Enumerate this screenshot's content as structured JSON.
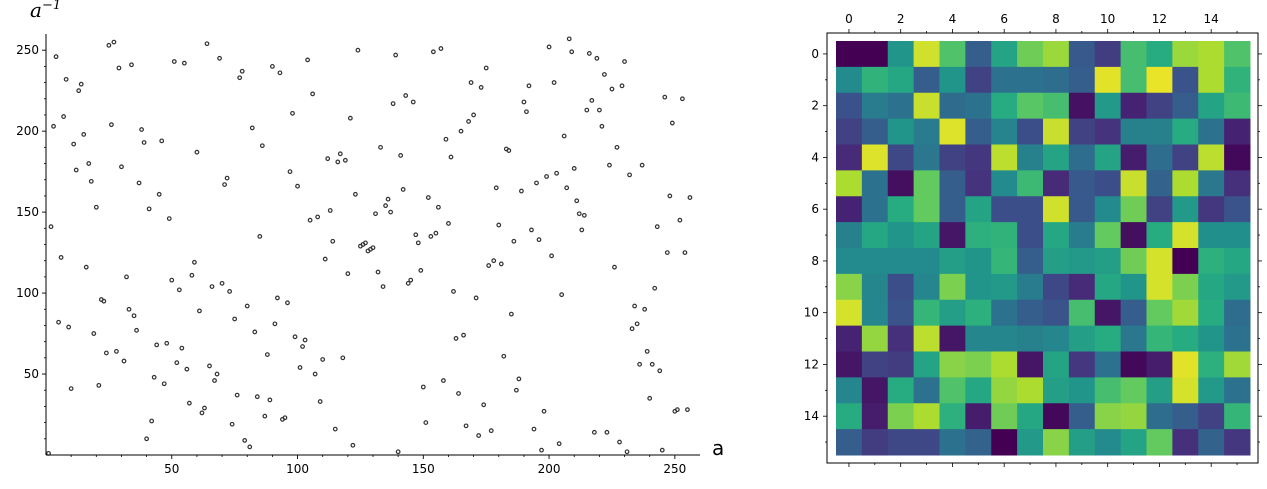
{
  "chart_data": [
    {
      "type": "scatter",
      "title": "",
      "xlabel": "a",
      "ylabel": "a",
      "ylabel_superscript": "−1",
      "xlim": [
        0,
        260
      ],
      "ylim": [
        0,
        260
      ],
      "x_ticks": [
        50,
        100,
        150,
        200,
        250
      ],
      "y_ticks": [
        50,
        100,
        150,
        200,
        250
      ],
      "grid": false,
      "marker_color": "#333333",
      "points": [
        [
          1,
          1
        ],
        [
          2,
          141
        ],
        [
          3,
          203
        ],
        [
          4,
          246
        ],
        [
          5,
          82
        ],
        [
          6,
          122
        ],
        [
          7,
          209
        ],
        [
          8,
          232
        ],
        [
          9,
          79
        ],
        [
          10,
          41
        ],
        [
          11,
          192
        ],
        [
          12,
          176
        ],
        [
          13,
          225
        ],
        [
          14,
          229
        ],
        [
          15,
          198
        ],
        [
          16,
          116
        ],
        [
          17,
          180
        ],
        [
          18,
          169
        ],
        [
          19,
          75
        ],
        [
          20,
          153
        ],
        [
          21,
          43
        ],
        [
          22,
          96
        ],
        [
          23,
          95
        ],
        [
          24,
          63
        ],
        [
          25,
          253
        ],
        [
          26,
          204
        ],
        [
          27,
          255
        ],
        [
          28,
          64
        ],
        [
          29,
          239
        ],
        [
          30,
          178
        ],
        [
          31,
          58
        ],
        [
          32,
          110
        ],
        [
          33,
          90
        ],
        [
          34,
          241
        ],
        [
          35,
          86
        ],
        [
          36,
          77
        ],
        [
          37,
          168
        ],
        [
          38,
          201
        ],
        [
          39,
          193
        ],
        [
          40,
          10
        ],
        [
          41,
          152
        ],
        [
          42,
          21
        ],
        [
          43,
          48
        ],
        [
          44,
          68
        ],
        [
          45,
          161
        ],
        [
          46,
          194
        ],
        [
          47,
          44
        ],
        [
          48,
          69
        ],
        [
          49,
          146
        ],
        [
          50,
          108
        ],
        [
          51,
          243
        ],
        [
          52,
          57
        ],
        [
          53,
          102
        ],
        [
          54,
          66
        ],
        [
          55,
          242
        ],
        [
          56,
          53
        ],
        [
          57,
          32
        ],
        [
          58,
          111
        ],
        [
          59,
          119
        ],
        [
          60,
          187
        ],
        [
          61,
          89
        ],
        [
          62,
          26
        ],
        [
          63,
          29
        ],
        [
          64,
          254
        ],
        [
          65,
          55
        ],
        [
          66,
          104
        ],
        [
          67,
          46
        ],
        [
          68,
          50
        ],
        [
          69,
          245
        ],
        [
          70,
          106
        ],
        [
          71,
          167
        ],
        [
          72,
          171
        ],
        [
          73,
          101
        ],
        [
          74,
          19
        ],
        [
          75,
          84
        ],
        [
          76,
          37
        ],
        [
          77,
          233
        ],
        [
          78,
          237
        ],
        [
          79,
          9
        ],
        [
          80,
          92
        ],
        [
          81,
          5
        ],
        [
          82,
          202
        ],
        [
          83,
          76
        ],
        [
          84,
          36
        ],
        [
          85,
          135
        ],
        [
          86,
          191
        ],
        [
          87,
          24
        ],
        [
          88,
          62
        ],
        [
          89,
          34
        ],
        [
          90,
          240
        ],
        [
          91,
          81
        ],
        [
          92,
          97
        ],
        [
          93,
          236
        ],
        [
          94,
          22
        ],
        [
          95,
          23
        ],
        [
          96,
          94
        ],
        [
          97,
          175
        ],
        [
          98,
          211
        ],
        [
          99,
          73
        ],
        [
          100,
          166
        ],
        [
          101,
          54
        ],
        [
          102,
          67
        ],
        [
          103,
          71
        ],
        [
          104,
          244
        ],
        [
          105,
          145
        ],
        [
          106,
          223
        ],
        [
          107,
          50
        ],
        [
          108,
          147
        ],
        [
          109,
          33
        ],
        [
          110,
          59
        ],
        [
          111,
          121
        ],
        [
          112,
          183
        ],
        [
          113,
          151
        ],
        [
          114,
          132
        ],
        [
          115,
          16
        ],
        [
          116,
          181
        ],
        [
          117,
          186
        ],
        [
          118,
          60
        ],
        [
          119,
          182
        ],
        [
          120,
          112
        ],
        [
          121,
          208
        ],
        [
          122,
          6
        ],
        [
          123,
          161
        ],
        [
          124,
          250
        ],
        [
          125,
          129
        ],
        [
          126,
          130
        ],
        [
          127,
          131
        ],
        [
          128,
          126
        ],
        [
          129,
          127
        ],
        [
          130,
          128
        ],
        [
          131,
          149
        ],
        [
          132,
          113
        ],
        [
          133,
          190
        ],
        [
          134,
          104
        ],
        [
          135,
          154
        ],
        [
          136,
          158
        ],
        [
          137,
          150
        ],
        [
          138,
          217
        ],
        [
          139,
          247
        ],
        [
          140,
          2
        ],
        [
          141,
          185
        ],
        [
          142,
          164
        ],
        [
          143,
          222
        ],
        [
          144,
          106
        ],
        [
          145,
          108
        ],
        [
          146,
          218
        ],
        [
          147,
          136
        ],
        [
          148,
          131
        ],
        [
          149,
          114
        ],
        [
          150,
          42
        ],
        [
          151,
          20
        ],
        [
          152,
          159
        ],
        [
          153,
          135
        ],
        [
          154,
          249
        ],
        [
          155,
          137
        ],
        [
          156,
          153
        ],
        [
          157,
          251
        ],
        [
          158,
          46
        ],
        [
          159,
          195
        ],
        [
          160,
          143
        ],
        [
          161,
          184
        ],
        [
          162,
          101
        ],
        [
          163,
          72
        ],
        [
          164,
          38
        ],
        [
          165,
          200
        ],
        [
          166,
          74
        ],
        [
          167,
          18
        ],
        [
          168,
          206
        ],
        [
          169,
          230
        ],
        [
          170,
          210
        ],
        [
          171,
          97
        ],
        [
          172,
          12
        ],
        [
          173,
          227
        ],
        [
          174,
          31
        ],
        [
          175,
          239
        ],
        [
          176,
          117
        ],
        [
          177,
          15
        ],
        [
          178,
          120
        ],
        [
          179,
          165
        ],
        [
          180,
          142
        ],
        [
          181,
          118
        ],
        [
          182,
          61
        ],
        [
          183,
          189
        ],
        [
          184,
          188
        ],
        [
          185,
          87
        ],
        [
          186,
          132
        ],
        [
          187,
          40
        ],
        [
          188,
          47
        ],
        [
          189,
          163
        ],
        [
          190,
          218
        ],
        [
          191,
          212
        ],
        [
          192,
          228
        ],
        [
          193,
          139
        ],
        [
          194,
          16
        ],
        [
          195,
          168
        ],
        [
          196,
          133
        ],
        [
          197,
          3
        ],
        [
          198,
          27
        ],
        [
          199,
          172
        ],
        [
          200,
          252
        ],
        [
          201,
          123
        ],
        [
          202,
          230
        ],
        [
          203,
          174
        ],
        [
          204,
          7
        ],
        [
          205,
          99
        ],
        [
          206,
          197
        ],
        [
          207,
          165
        ],
        [
          208,
          257
        ],
        [
          209,
          249
        ],
        [
          210,
          177
        ],
        [
          211,
          157
        ],
        [
          212,
          149
        ],
        [
          213,
          139
        ],
        [
          214,
          148
        ],
        [
          215,
          213
        ],
        [
          216,
          248
        ],
        [
          217,
          219
        ],
        [
          218,
          14
        ],
        [
          219,
          245
        ],
        [
          220,
          213
        ],
        [
          221,
          203
        ],
        [
          222,
          235
        ],
        [
          223,
          14
        ],
        [
          224,
          179
        ],
        [
          225,
          226
        ],
        [
          226,
          116
        ],
        [
          227,
          190
        ],
        [
          228,
          8
        ],
        [
          229,
          228
        ],
        [
          230,
          243
        ],
        [
          231,
          2
        ],
        [
          232,
          173
        ],
        [
          233,
          78
        ],
        [
          234,
          92
        ],
        [
          235,
          81
        ],
        [
          236,
          56
        ],
        [
          237,
          179
        ],
        [
          238,
          90
        ],
        [
          239,
          64
        ],
        [
          240,
          35
        ],
        [
          241,
          56
        ],
        [
          242,
          103
        ],
        [
          243,
          141
        ],
        [
          244,
          52
        ],
        [
          245,
          3
        ],
        [
          246,
          221
        ],
        [
          247,
          125
        ],
        [
          248,
          160
        ],
        [
          249,
          205
        ],
        [
          250,
          27
        ],
        [
          251,
          28
        ],
        [
          252,
          145
        ],
        [
          253,
          220
        ],
        [
          254,
          125
        ],
        [
          255,
          28
        ],
        [
          256,
          159
        ]
      ]
    },
    {
      "type": "heatmap",
      "title": "",
      "x_ticks": [
        0,
        2,
        4,
        6,
        8,
        10,
        12,
        14
      ],
      "y_ticks": [
        0,
        2,
        4,
        6,
        8,
        10,
        12,
        14
      ],
      "colormap": "viridis",
      "value_range": [
        0,
        1
      ],
      "values": [
        [
          0.0,
          0.0,
          0.52,
          0.93,
          0.72,
          0.3,
          0.58,
          0.78,
          0.85,
          0.28,
          0.18,
          0.7,
          0.62,
          0.85,
          0.88,
          0.72
        ],
        [
          0.48,
          0.65,
          0.6,
          0.3,
          0.52,
          0.2,
          0.38,
          0.38,
          0.36,
          0.3,
          0.96,
          0.7,
          0.97,
          0.26,
          0.88,
          0.65
        ],
        [
          0.25,
          0.42,
          0.38,
          0.92,
          0.35,
          0.38,
          0.62,
          0.74,
          0.7,
          0.05,
          0.54,
          0.1,
          0.2,
          0.3,
          0.58,
          0.68
        ],
        [
          0.2,
          0.3,
          0.52,
          0.42,
          0.95,
          0.3,
          0.45,
          0.24,
          0.92,
          0.2,
          0.15,
          0.44,
          0.44,
          0.62,
          0.38,
          0.1
        ],
        [
          0.12,
          0.95,
          0.22,
          0.4,
          0.2,
          0.16,
          0.9,
          0.44,
          0.58,
          0.36,
          0.58,
          0.08,
          0.36,
          0.2,
          0.9,
          0.02
        ],
        [
          0.88,
          0.38,
          0.04,
          0.76,
          0.3,
          0.15,
          0.48,
          0.68,
          0.12,
          0.28,
          0.24,
          0.92,
          0.32,
          0.88,
          0.4,
          0.14
        ],
        [
          0.1,
          0.38,
          0.62,
          0.76,
          0.3,
          0.58,
          0.24,
          0.24,
          0.93,
          0.28,
          0.48,
          0.78,
          0.2,
          0.54,
          0.16,
          0.26
        ],
        [
          0.44,
          0.6,
          0.52,
          0.58,
          0.06,
          0.64,
          0.65,
          0.24,
          0.6,
          0.42,
          0.76,
          0.04,
          0.62,
          0.94,
          0.5,
          0.5
        ],
        [
          0.48,
          0.48,
          0.48,
          0.48,
          0.56,
          0.52,
          0.66,
          0.3,
          0.56,
          0.54,
          0.56,
          0.78,
          0.94,
          0.0,
          0.64,
          0.6
        ],
        [
          0.82,
          0.46,
          0.24,
          0.46,
          0.8,
          0.52,
          0.54,
          0.42,
          0.22,
          0.12,
          0.6,
          0.52,
          0.94,
          0.8,
          0.6,
          0.54
        ],
        [
          0.94,
          0.46,
          0.26,
          0.66,
          0.56,
          0.64,
          0.38,
          0.3,
          0.26,
          0.7,
          0.06,
          0.3,
          0.76,
          0.86,
          0.62,
          0.36
        ],
        [
          0.1,
          0.84,
          0.14,
          0.9,
          0.06,
          0.46,
          0.46,
          0.44,
          0.46,
          0.56,
          0.62,
          0.4,
          0.66,
          0.62,
          0.52,
          0.38
        ],
        [
          0.06,
          0.2,
          0.18,
          0.58,
          0.82,
          0.8,
          0.88,
          0.06,
          0.58,
          0.16,
          0.38,
          0.02,
          0.08,
          0.96,
          0.64,
          0.86
        ],
        [
          0.46,
          0.06,
          0.62,
          0.38,
          0.72,
          0.6,
          0.84,
          0.88,
          0.56,
          0.52,
          0.7,
          0.76,
          0.56,
          0.94,
          0.54,
          0.38
        ],
        [
          0.62,
          0.08,
          0.8,
          0.88,
          0.64,
          0.08,
          0.78,
          0.6,
          0.02,
          0.3,
          0.82,
          0.84,
          0.36,
          0.3,
          0.2,
          0.66
        ],
        [
          0.3,
          0.18,
          0.22,
          0.22,
          0.38,
          0.32,
          0.0,
          0.54,
          0.82,
          0.56,
          0.48,
          0.58,
          0.76,
          0.14,
          0.32,
          0.16
        ]
      ]
    }
  ]
}
